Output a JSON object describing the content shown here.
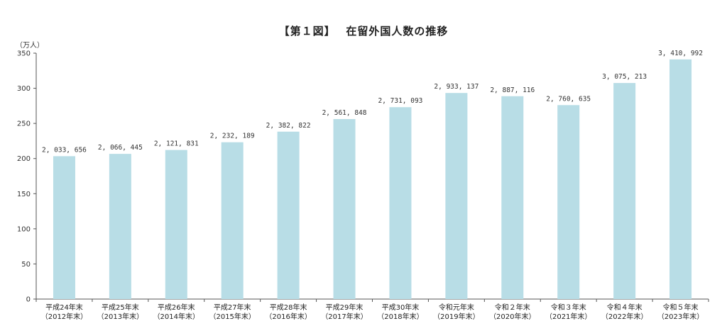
{
  "chart_data": {
    "type": "bar",
    "title": "【第１図】　 在留外国人数の推移",
    "ylabel": "（万人）",
    "xlabel": "",
    "ylim": [
      0,
      350
    ],
    "yticks": [
      0,
      50,
      100,
      150,
      200,
      250,
      300,
      350
    ],
    "grid": false,
    "bar_color": "#b8dde6",
    "categories": [
      {
        "line1": "平成24年末",
        "line2": "（2012年末）"
      },
      {
        "line1": "平成25年末",
        "line2": "（2013年末）"
      },
      {
        "line1": "平成26年末",
        "line2": "（2014年末）"
      },
      {
        "line1": "平成27年末",
        "line2": "（2015年末）"
      },
      {
        "line1": "平成28年末",
        "line2": "（2016年末）"
      },
      {
        "line1": "平成29年末",
        "line2": "（2017年末）"
      },
      {
        "line1": "平成30年末",
        "line2": "（2018年末）"
      },
      {
        "line1": "令和元年末",
        "line2": "（2019年末）"
      },
      {
        "line1": "令和２年末",
        "line2": "（2020年末）"
      },
      {
        "line1": "令和３年末",
        "line2": "（2021年末）"
      },
      {
        "line1": "令和４年末",
        "line2": "（2022年末）"
      },
      {
        "line1": "令和５年末",
        "line2": "（2023年末）"
      }
    ],
    "values": [
      2033656,
      2066445,
      2121831,
      2232189,
      2382822,
      2561848,
      2731093,
      2933137,
      2887116,
      2760635,
      3075213,
      3410992
    ],
    "value_labels": [
      "2, 033, 656",
      "2, 066, 445",
      "2, 121, 831",
      "2, 232, 189",
      "2, 382, 822",
      "2, 561, 848",
      "2, 731, 093",
      "2, 933, 137",
      "2, 887, 116",
      "2, 760, 635",
      "3, 075, 213",
      "3, 410, 992"
    ]
  }
}
